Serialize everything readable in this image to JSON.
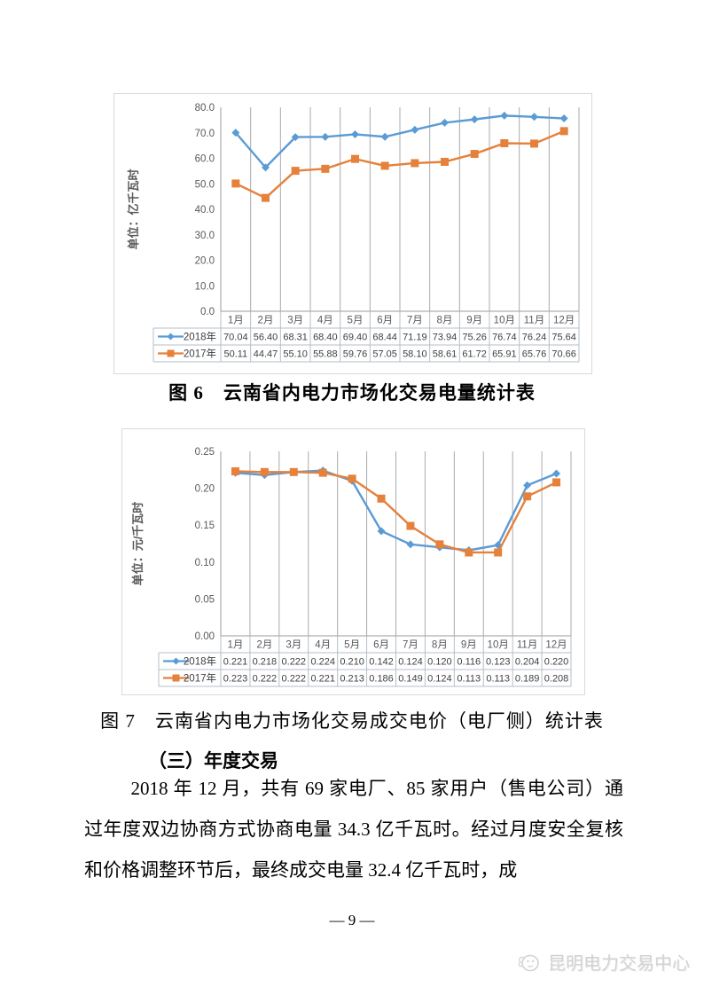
{
  "figures": {
    "fig6_caption": "图 6　云南省内电力市场化交易电量统计表",
    "fig7_caption": "图 7　云南省内电力市场化交易成交电价（电厂侧）统计表"
  },
  "section": {
    "heading": "（三）年度交易",
    "paragraph": "2018 年 12 月，共有 69 家电厂、85 家用户（售电公司）通过年度双边协商方式协商电量 34.3 亿千瓦时。经过月度安全复核和价格调整环节后，最终成交电量 32.4 亿千瓦时，成"
  },
  "page_footer": {
    "page_number": "— 9 —",
    "brand": "昆明电力交易中心"
  },
  "colors": {
    "series_2018": "#5b9bd5",
    "series_2017": "#e5813b",
    "grid": "#aaaaaa",
    "axis_line": "#9b9b9b",
    "table_border": "#b3bfc9",
    "axis_text": "#595959",
    "value_text": "#404040",
    "watermark": "#d2d2d2"
  },
  "chart_data": [
    {
      "type": "line",
      "title": "",
      "unit_label": "单位：亿千瓦时",
      "categories": [
        "1月",
        "2月",
        "3月",
        "4月",
        "5月",
        "6月",
        "7月",
        "8月",
        "9月",
        "10月",
        "11月",
        "12月"
      ],
      "series": [
        {
          "name": "2018年",
          "marker": "diamond",
          "color": "#5b9bd5",
          "values": [
            70.04,
            56.4,
            68.31,
            68.4,
            69.4,
            68.44,
            71.19,
            73.94,
            75.26,
            76.74,
            76.24,
            75.64
          ]
        },
        {
          "name": "2017年",
          "marker": "square",
          "color": "#e5813b",
          "values": [
            50.11,
            44.47,
            55.1,
            55.88,
            59.76,
            57.05,
            58.1,
            58.61,
            61.72,
            65.91,
            65.76,
            70.66
          ]
        }
      ],
      "ylim": [
        0,
        80
      ],
      "ytick_step": 10,
      "ytick_decimals": 1,
      "value_decimals": 2,
      "grid": "vertical-only",
      "legend_position": "data-table-left"
    },
    {
      "type": "line",
      "title": "",
      "unit_label": "单位：元/千瓦时",
      "categories": [
        "1月",
        "2月",
        "3月",
        "4月",
        "5月",
        "6月",
        "7月",
        "8月",
        "9月",
        "10月",
        "11月",
        "12月"
      ],
      "series": [
        {
          "name": "2018年",
          "marker": "diamond",
          "color": "#5b9bd5",
          "values": [
            0.221,
            0.218,
            0.222,
            0.224,
            0.21,
            0.142,
            0.124,
            0.12,
            0.116,
            0.123,
            0.204,
            0.22
          ]
        },
        {
          "name": "2017年",
          "marker": "square",
          "color": "#e5813b",
          "values": [
            0.223,
            0.222,
            0.222,
            0.221,
            0.213,
            0.186,
            0.149,
            0.124,
            0.113,
            0.113,
            0.189,
            0.208
          ]
        }
      ],
      "ylim": [
        0,
        0.25
      ],
      "ytick_step": 0.05,
      "ytick_decimals": 2,
      "value_decimals": 3,
      "grid": "vertical-only",
      "legend_position": "data-table-left"
    }
  ]
}
